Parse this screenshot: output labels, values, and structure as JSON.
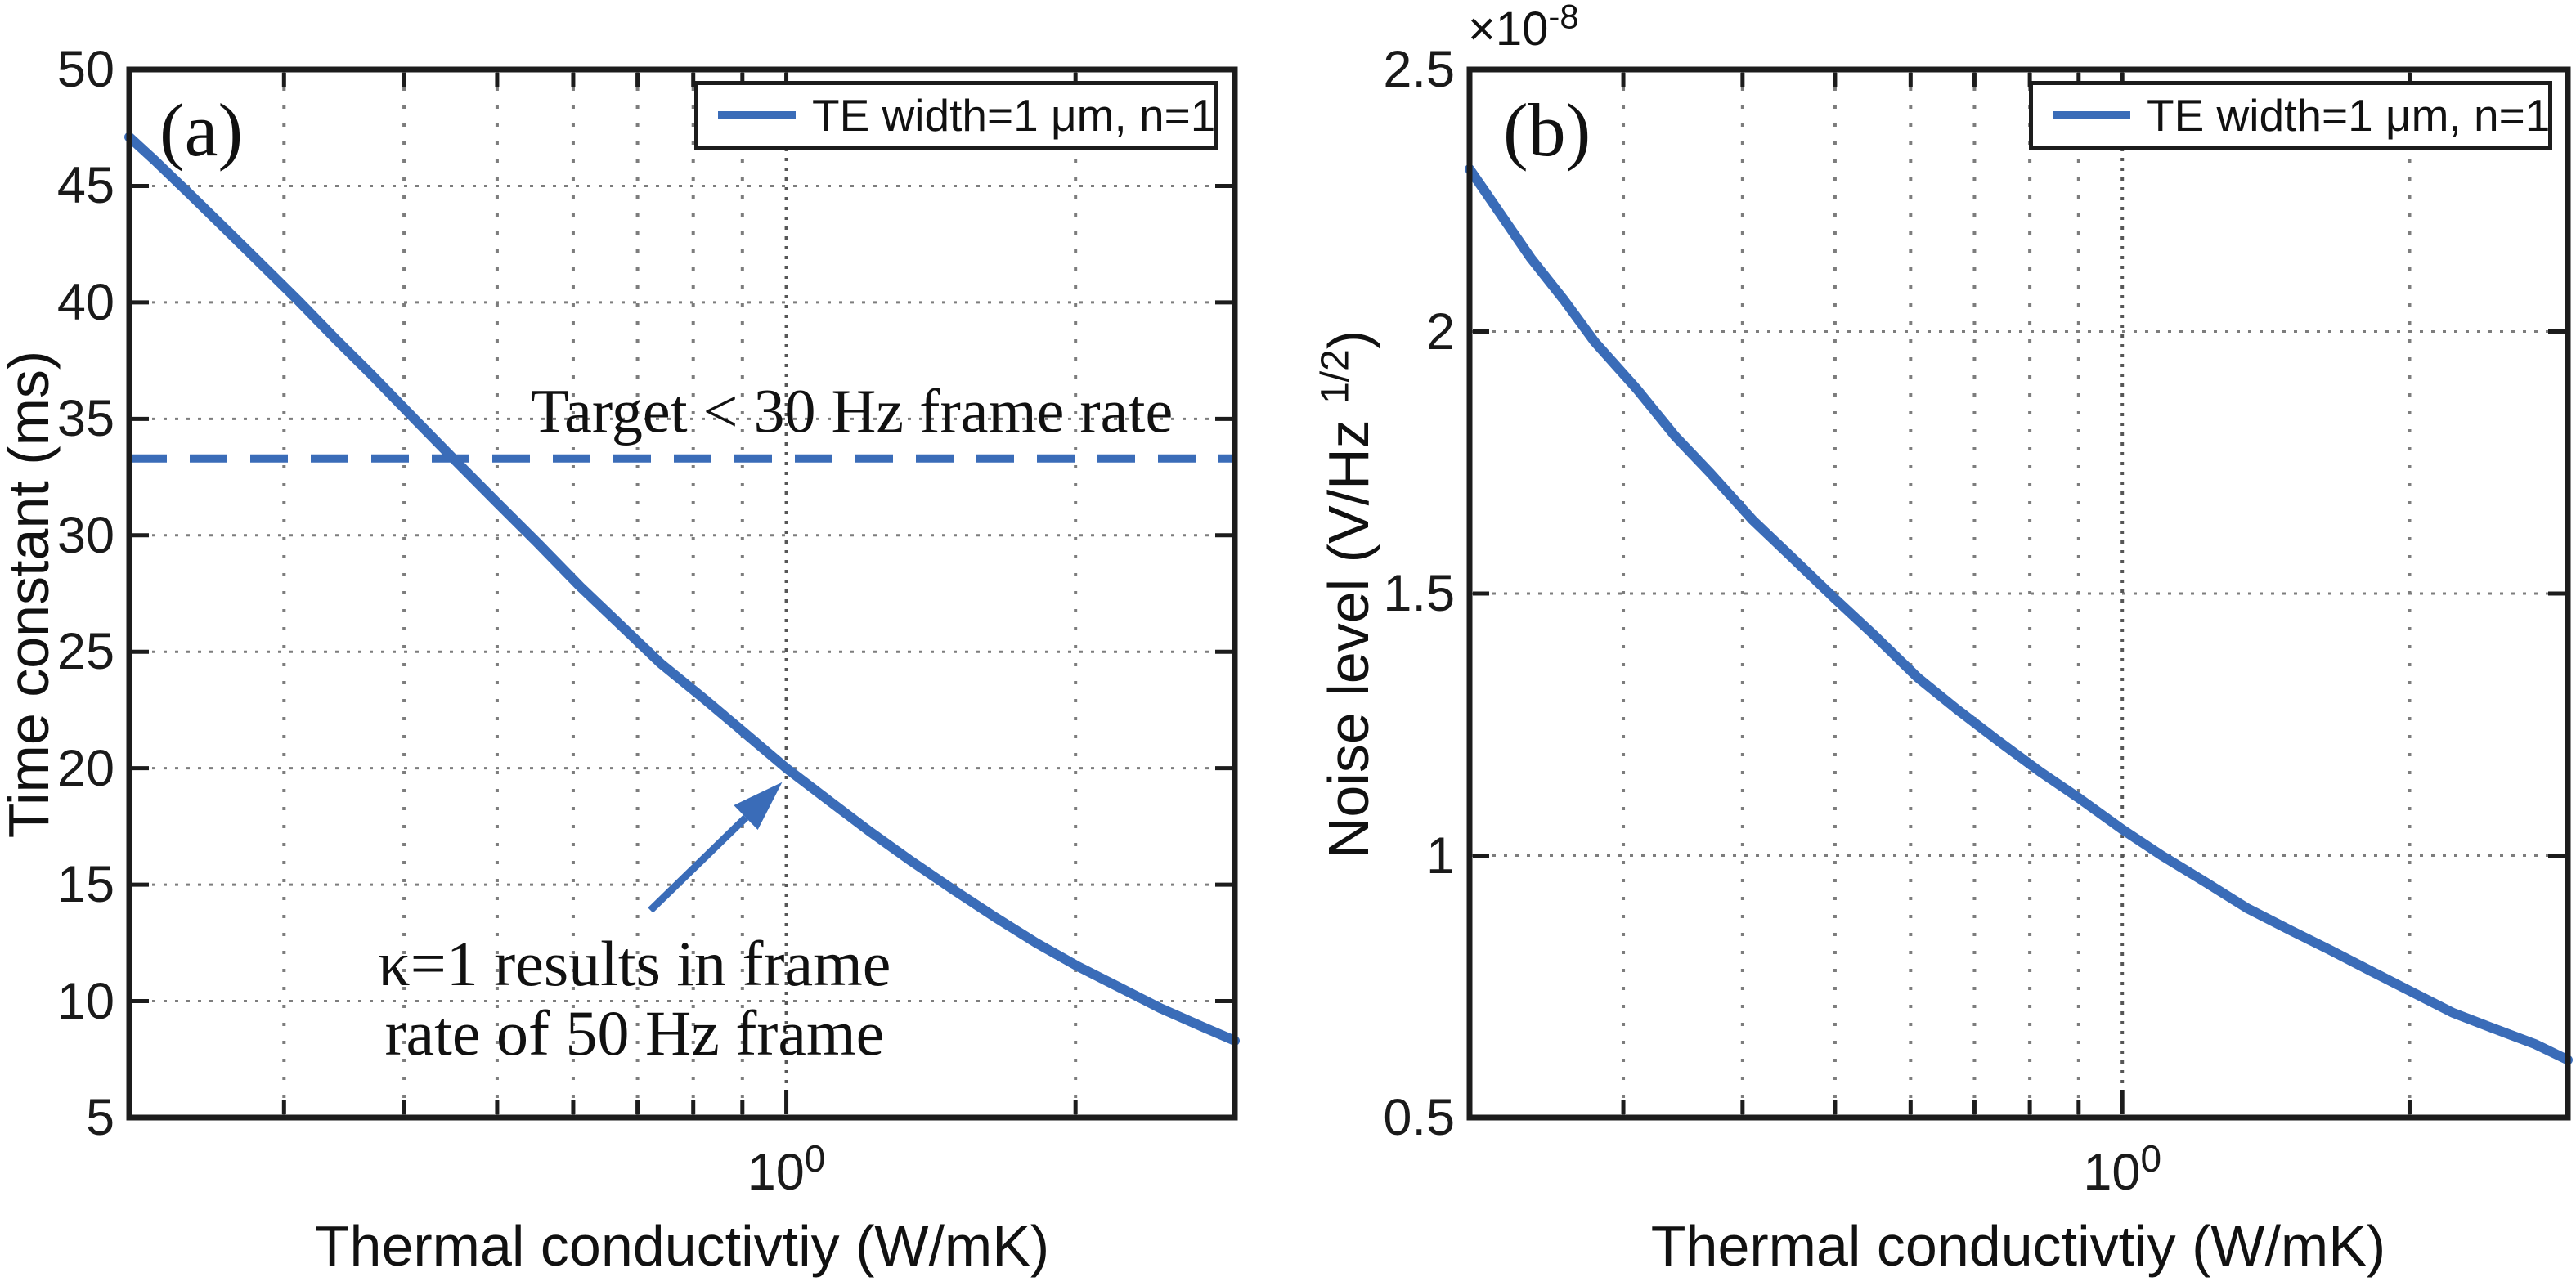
{
  "chart_data": {
    "type": "line",
    "xscale": "log",
    "grid": true,
    "legend_position": "top-right",
    "colors": {
      "curve": "#3a6cb8",
      "dashed": "#3a6cb8",
      "arrow": "#3a6cb8",
      "grid_minor": "#7d7d7d",
      "grid_major": "#565656",
      "spine": "#1c1c1c",
      "text": "#1a1a1a"
    },
    "plots": [
      {
        "id": "a",
        "panel_label": "(a)",
        "xlabel": "Thermal conductivtiy (W/mK)",
        "ylabel": "Time constant (ms)",
        "xlim": [
          0.207,
          2.93
        ],
        "ylim": [
          5,
          50
        ],
        "yticks": {
          "values": [
            5,
            10,
            15,
            20,
            25,
            30,
            35,
            40,
            45,
            50
          ],
          "labels": [
            "5",
            "10",
            "15",
            "20",
            "25",
            "30",
            "35",
            "40",
            "45",
            "50"
          ]
        },
        "y_gridlines": [
          10,
          15,
          20,
          25,
          30,
          35,
          40,
          45
        ],
        "x_minor_gridlines": [
          0.3,
          0.4,
          0.5,
          0.6,
          0.7,
          0.8,
          0.9,
          2
        ],
        "x_major_gridlines": [
          1
        ],
        "x_major_tick": {
          "value": 1,
          "label_base": "10",
          "label_exp": "0"
        },
        "legend": {
          "label": "TE width=1 μm, n=1"
        },
        "series": [
          {
            "name": "TE width=1 μm, n=1",
            "x": [
              0.207,
              0.22,
              0.24,
              0.26,
              0.28,
              0.31,
              0.34,
              0.37,
              0.41,
              0.45,
              0.5,
              0.55,
              0.61,
              0.67,
              0.74,
              0.82,
              0.9,
              1.0,
              1.1,
              1.22,
              1.35,
              1.49,
              1.65,
              1.82,
              2.01,
              2.22,
              2.45,
              2.71,
              2.93
            ],
            "y": [
              47.1,
              46.1,
              44.6,
              43.2,
              41.9,
              40.1,
              38.4,
              36.9,
              35.0,
              33.3,
              31.4,
              29.7,
              27.8,
              26.2,
              24.5,
              23.0,
              21.6,
              20.0,
              18.7,
              17.3,
              16.0,
              14.8,
              13.6,
              12.5,
              11.5,
              10.6,
              9.7,
              8.9,
              8.3
            ]
          }
        ],
        "annotations": {
          "dashed_line": {
            "y": 33.3
          },
          "target_text": {
            "text": "Target < 30 Hz frame rate",
            "x": 1.17,
            "y": 35.3
          },
          "note_text": {
            "lines": [
              "κ=1 results in frame",
              "rate of 50 Hz frame"
            ],
            "x": 0.695,
            "y": [
              11.6,
              8.6
            ]
          },
          "arrow": {
            "from": [
              0.722,
              13.9
            ],
            "to": [
              0.99,
              19.4
            ]
          }
        }
      },
      {
        "id": "b",
        "panel_label": "(b)",
        "xlabel": "Thermal conductivtiy (W/mK)",
        "ylabel": "Noise level (V/Hz 1/2)",
        "ylabel_parts": {
          "prefix": "Noise level (V/Hz ",
          "sup": "1/2",
          "suffix": ")"
        },
        "y_multiplier": {
          "base": "×10",
          "exp": "-8"
        },
        "xlim": [
          0.207,
          2.93
        ],
        "ylim": [
          0.5,
          2.5
        ],
        "yticks": {
          "values": [
            0.5,
            1,
            1.5,
            2,
            2.5
          ],
          "labels": [
            "0.5",
            "1",
            "1.5",
            "2",
            "2.5"
          ]
        },
        "y_gridlines": [
          1,
          1.5,
          2
        ],
        "x_minor_gridlines": [
          0.3,
          0.4,
          0.5,
          0.6,
          0.7,
          0.8,
          0.9,
          2
        ],
        "x_major_gridlines": [
          1
        ],
        "x_major_tick": {
          "value": 1,
          "label_base": "10",
          "label_exp": "0"
        },
        "legend": {
          "label": "TE width=1 μm, n=1"
        },
        "series": [
          {
            "name": "TE width=1 μm, n=1",
            "x": [
              0.207,
              0.22,
              0.24,
              0.26,
              0.28,
              0.31,
              0.34,
              0.37,
              0.41,
              0.45,
              0.5,
              0.55,
              0.61,
              0.67,
              0.74,
              0.82,
              0.9,
              1.0,
              1.1,
              1.22,
              1.35,
              1.49,
              1.65,
              1.82,
              2.01,
              2.22,
              2.45,
              2.71,
              2.93
            ],
            "y": [
              2.31,
              2.24,
              2.14,
              2.06,
              1.98,
              1.89,
              1.8,
              1.73,
              1.64,
              1.57,
              1.49,
              1.42,
              1.34,
              1.28,
              1.22,
              1.16,
              1.11,
              1.05,
              1.0,
              0.95,
              0.9,
              0.86,
              0.82,
              0.78,
              0.74,
              0.7,
              0.67,
              0.64,
              0.61
            ]
          }
        ]
      }
    ]
  }
}
